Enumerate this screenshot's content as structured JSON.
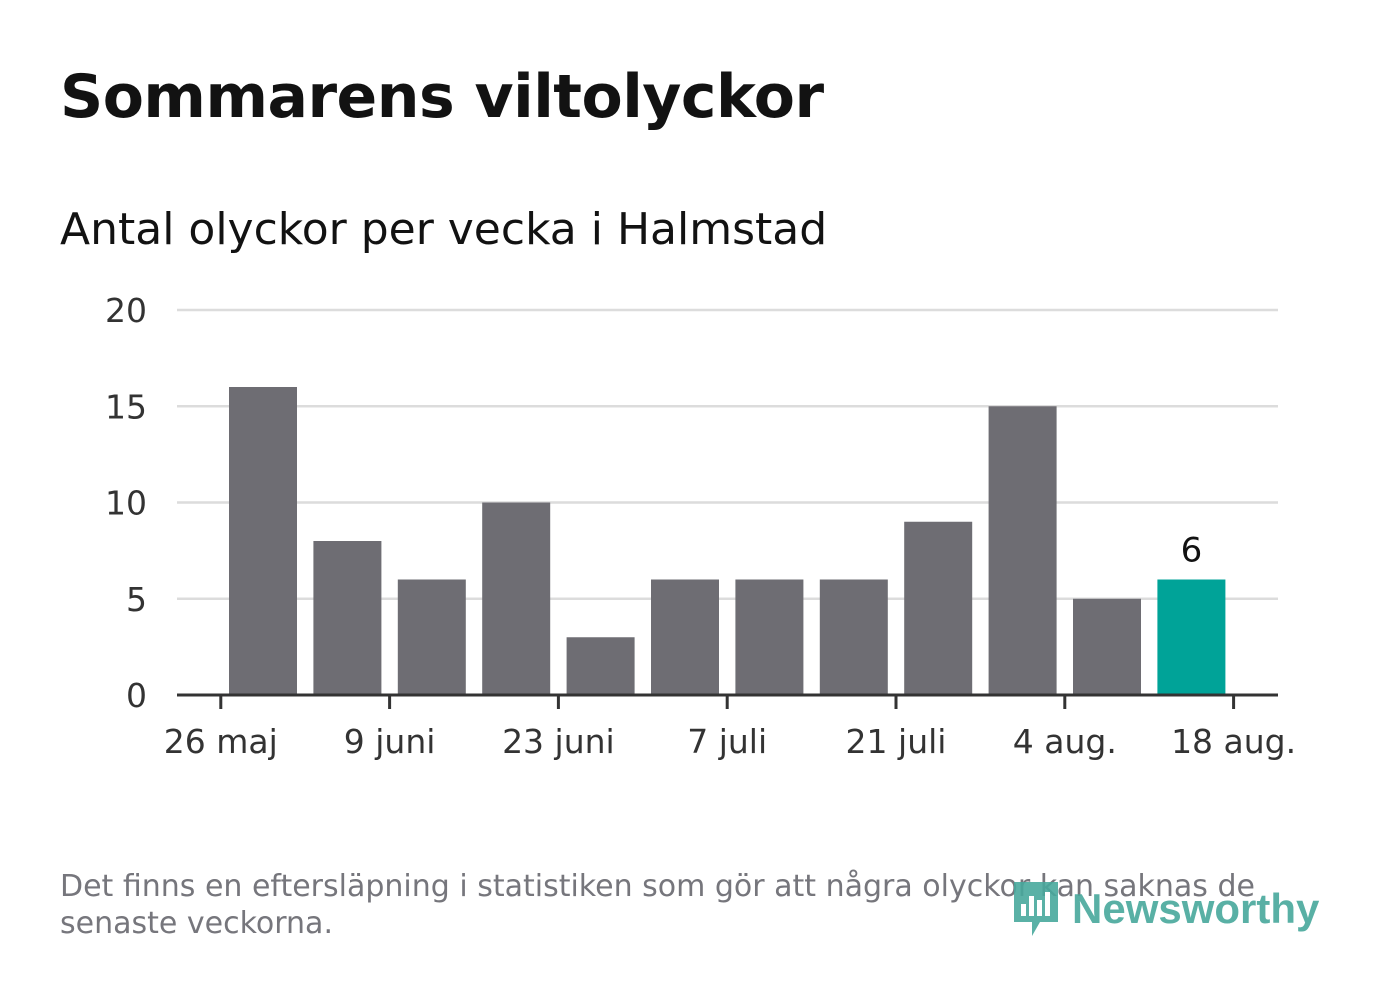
{
  "title": "Sommarens viltolyckor",
  "subtitle": "Antal olyckor per vecka i Halmstad",
  "footnote": "Det finns en eftersläpning i statistiken som gör att några olyckor kan saknas de senaste veckorna.",
  "logo": {
    "text": "Newsworthy",
    "icon": "newsworthy-logo-icon",
    "color": "#48a89c"
  },
  "colors": {
    "bar": "#6e6d73",
    "highlight": "#00a398",
    "grid": "#dcdcdc",
    "axis": "#333333",
    "text": "#333333"
  },
  "chart_data": {
    "type": "bar",
    "title": "Antal olyckor per vecka i Halmstad",
    "xlabel": "",
    "ylabel": "",
    "x_tick_labels": [
      "26 maj",
      "9 juni",
      "23 juni",
      "7 juli",
      "21 juli",
      "4 aug.",
      "18 aug."
    ],
    "y_ticks": [
      0,
      5,
      10,
      15,
      20
    ],
    "ylim": [
      0,
      20
    ],
    "grid": true,
    "values": [
      16,
      8,
      6,
      10,
      3,
      6,
      6,
      6,
      9,
      15,
      5,
      6
    ],
    "highlight_index": 11,
    "data_labels": [
      {
        "index": 11,
        "text": "6"
      }
    ]
  }
}
